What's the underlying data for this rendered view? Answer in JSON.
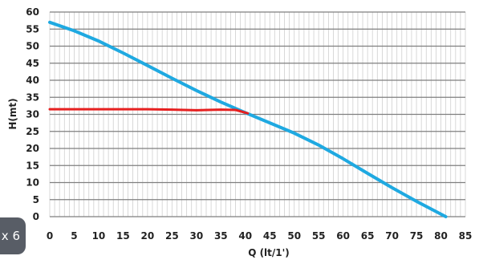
{
  "badge": {
    "text": "x 6"
  },
  "colors": {
    "pump_curve": "#1fa9e1",
    "operating_line": "#e62020",
    "major_grid": "#7f7f7f",
    "minor_grid": "#cfcfcf",
    "background": "#ffffff"
  },
  "chart_data": {
    "type": "line",
    "title": "",
    "xlabel": "Q (lt/1')",
    "ylabel": "H(mt)",
    "xlim": [
      0,
      85
    ],
    "ylim": [
      0,
      60
    ],
    "x_ticks": [
      0,
      5,
      10,
      15,
      20,
      25,
      30,
      35,
      40,
      45,
      50,
      55,
      60,
      65,
      70,
      75,
      80,
      85
    ],
    "y_ticks": [
      0,
      5,
      10,
      15,
      20,
      25,
      30,
      35,
      40,
      45,
      50,
      55,
      60
    ],
    "grid": {
      "major_y": true,
      "minor_x": true,
      "minor_x_step": 1
    },
    "legend": "none",
    "series": [
      {
        "color": "#1fa9e1",
        "points": [
          [
            0,
            57
          ],
          [
            5,
            54.5
          ],
          [
            10,
            51.5
          ],
          [
            15,
            48
          ],
          [
            20,
            44.3
          ],
          [
            25,
            40.6
          ],
          [
            30,
            37
          ],
          [
            35,
            33.6
          ],
          [
            40,
            30.5
          ],
          [
            45,
            27.5
          ],
          [
            50,
            24.5
          ],
          [
            55,
            21
          ],
          [
            60,
            17
          ],
          [
            65,
            12.7
          ],
          [
            70,
            8.5
          ],
          [
            75,
            4.5
          ],
          [
            81,
            0
          ]
        ]
      },
      {
        "color": "#e62020",
        "points": [
          [
            0,
            31.5
          ],
          [
            10,
            31.5
          ],
          [
            20,
            31.5
          ],
          [
            25,
            31.4
          ],
          [
            30,
            31.2
          ],
          [
            35,
            31.4
          ],
          [
            38,
            31.3
          ],
          [
            40.5,
            30.3
          ]
        ]
      }
    ]
  }
}
